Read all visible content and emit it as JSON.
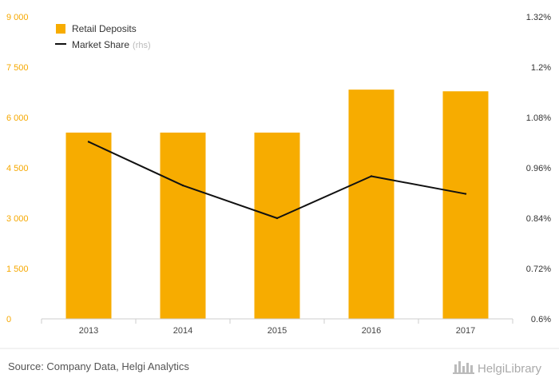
{
  "chart_data": {
    "type": "bar",
    "title": "",
    "categories": [
      "2013",
      "2014",
      "2015",
      "2016",
      "2017"
    ],
    "series": [
      {
        "name": "Retail Deposits",
        "type": "bar",
        "axis": "left",
        "color": "#f7ac00",
        "values": [
          5550,
          5550,
          5550,
          6830,
          6780
        ]
      },
      {
        "name": "Market Share",
        "suffix": "(rhs)",
        "type": "line",
        "axis": "right",
        "color": "#111111",
        "values": [
          1.022,
          0.918,
          0.84,
          0.94,
          0.898
        ]
      }
    ],
    "left_axis": {
      "min": 0,
      "max": 9000,
      "ticks": [
        0,
        1500,
        3000,
        4500,
        6000,
        7500,
        9000
      ],
      "tick_labels": [
        "0",
        "1 500",
        "3 000",
        "4 500",
        "6 000",
        "7 500",
        "9 000"
      ]
    },
    "right_axis": {
      "min": 0.6,
      "max": 1.32,
      "ticks": [
        0.6,
        0.72,
        0.84,
        0.96,
        1.08,
        1.2,
        1.32
      ],
      "tick_labels": [
        "0.6%",
        "0.72%",
        "0.84%",
        "0.96%",
        "1.08%",
        "1.2%",
        "1.32%"
      ]
    },
    "grid": false,
    "legend_position": "top-left"
  },
  "footer": {
    "source": "Source: Company Data, Helgi Analytics",
    "logo": "HelgiLibrary"
  }
}
